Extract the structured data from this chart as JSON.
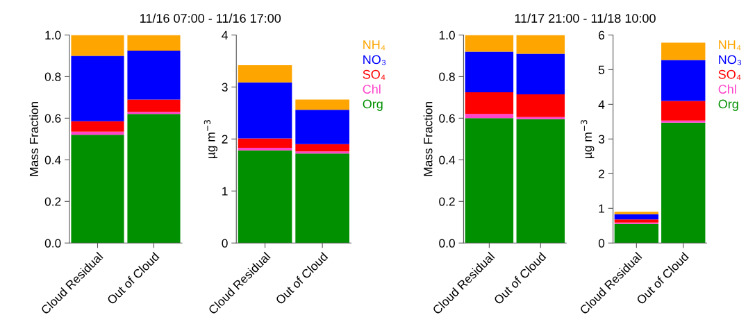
{
  "chart_data": [
    {
      "type": "bar",
      "stacked": true,
      "title": "11/16 07:00 - 11/16 17:00",
      "ylabel": "Mass Fraction",
      "categories": [
        "Cloud Residual",
        "Out of Cloud"
      ],
      "ylim": [
        0,
        1
      ],
      "yticks": [
        {
          "value": 0,
          "label": "0.0"
        },
        {
          "value": 0.2,
          "label": "0.2"
        },
        {
          "value": 0.4,
          "label": "0.4"
        },
        {
          "value": 0.6,
          "label": "0.6"
        },
        {
          "value": 0.8,
          "label": "0.8"
        },
        {
          "value": 1,
          "label": "1.0"
        }
      ],
      "grid": false,
      "legend": false,
      "series": [
        {
          "color": "#009000",
          "values": [
            0.52,
            0.62
          ]
        },
        {
          "color": "#ff44cc",
          "values": [
            0.015,
            0.01
          ]
        },
        {
          "color": "#ff0000",
          "values": [
            0.05,
            0.06
          ]
        },
        {
          "color": "#0000ff",
          "values": [
            0.315,
            0.235
          ]
        },
        {
          "color": "#ffa500",
          "values": [
            0.1,
            0.075
          ]
        }
      ]
    },
    {
      "type": "bar",
      "stacked": true,
      "ylabel": "µg m$^{−3}$",
      "categories": [
        "Cloud Residual",
        "Out of Cloud"
      ],
      "ylim": [
        0,
        4
      ],
      "yticks": [
        0,
        1,
        2,
        3,
        4
      ],
      "grid": false,
      "legend": "right",
      "series": [
        {
          "name": "Org",
          "color": "#009000",
          "values": [
            1.78,
            1.72
          ]
        },
        {
          "name": "Chl",
          "color": "#ff44cc",
          "values": [
            0.05,
            0.04
          ]
        },
        {
          "name": "SO₄",
          "color": "#ff0000",
          "values": [
            0.18,
            0.14
          ]
        },
        {
          "name": "NO₃",
          "color": "#0000ff",
          "values": [
            1.08,
            0.66
          ]
        },
        {
          "name": "NH₄",
          "color": "#ffa500",
          "values": [
            0.33,
            0.2
          ]
        }
      ]
    },
    {
      "type": "bar",
      "stacked": true,
      "title": "11/17 21:00 - 11/18 10:00",
      "ylabel": "Mass Fraction",
      "categories": [
        "Cloud Residual",
        "Out of Cloud"
      ],
      "ylim": [
        0,
        1
      ],
      "yticks": [
        {
          "value": 0,
          "label": "0.0"
        },
        {
          "value": 0.2,
          "label": "0.2"
        },
        {
          "value": 0.4,
          "label": "0.4"
        },
        {
          "value": 0.6,
          "label": "0.6"
        },
        {
          "value": 0.8,
          "label": "0.8"
        },
        {
          "value": 1,
          "label": "1.0"
        }
      ],
      "grid": false,
      "legend": false,
      "series": [
        {
          "color": "#009000",
          "values": [
            0.6,
            0.595
          ]
        },
        {
          "color": "#ff44cc",
          "values": [
            0.02,
            0.01
          ]
        },
        {
          "color": "#ff0000",
          "values": [
            0.105,
            0.11
          ]
        },
        {
          "color": "#0000ff",
          "values": [
            0.195,
            0.195
          ]
        },
        {
          "color": "#ffa500",
          "values": [
            0.08,
            0.09
          ]
        }
      ]
    },
    {
      "type": "bar",
      "stacked": true,
      "ylabel": "µg m$^{−3}$",
      "categories": [
        "Cloud Residual",
        "Out of Cloud"
      ],
      "ylim": [
        0,
        6
      ],
      "yticks": [
        0,
        1,
        2,
        3,
        4,
        5,
        6
      ],
      "grid": false,
      "legend": "right",
      "series": [
        {
          "name": "Org",
          "color": "#009000",
          "values": [
            0.55,
            3.47
          ]
        },
        {
          "name": "Chl",
          "color": "#ff44cc",
          "values": [
            0.04,
            0.06
          ]
        },
        {
          "name": "SO₄",
          "color": "#ff0000",
          "values": [
            0.09,
            0.57
          ]
        },
        {
          "name": "NO₃",
          "color": "#0000ff",
          "values": [
            0.15,
            1.18
          ]
        },
        {
          "name": "NH₄",
          "color": "#ffa500",
          "values": [
            0.07,
            0.5
          ]
        }
      ]
    }
  ]
}
